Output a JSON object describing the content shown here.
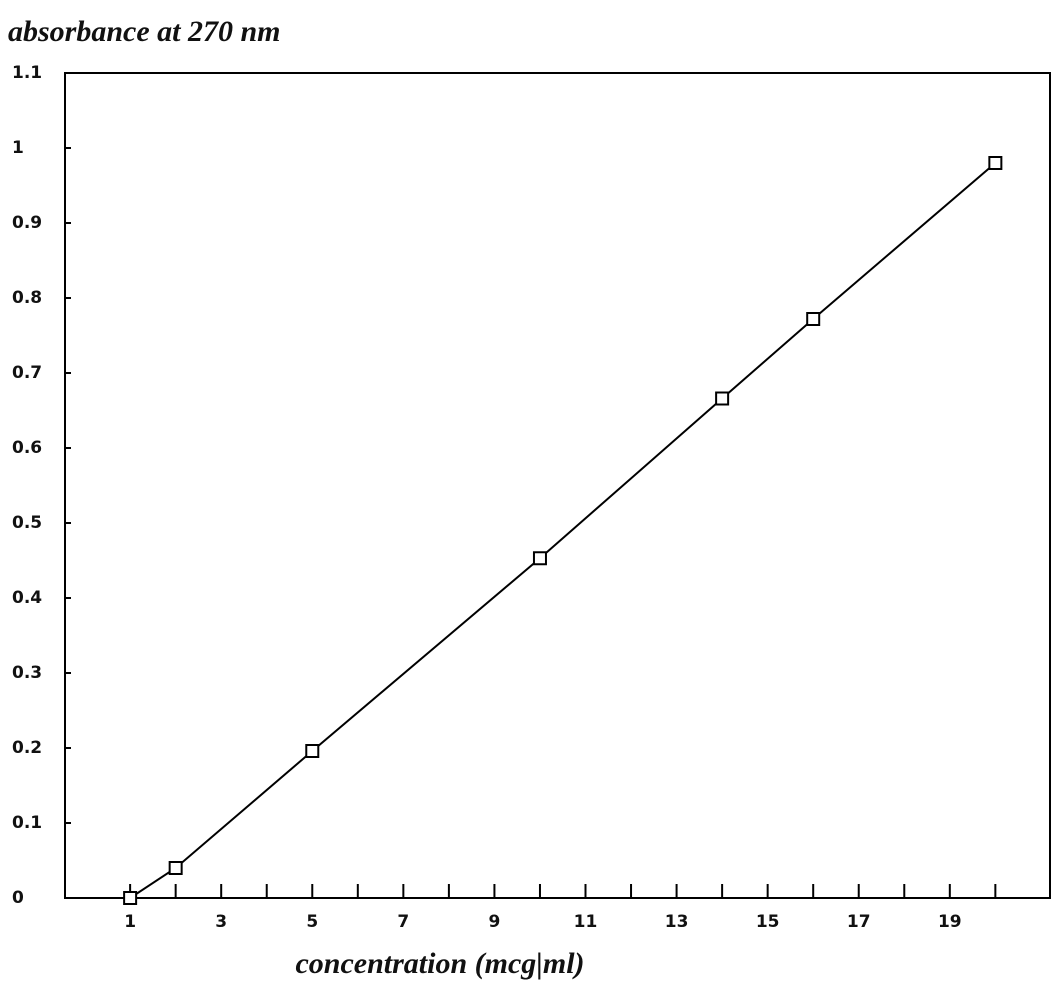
{
  "chart_data": {
    "type": "line",
    "title": "absorbance at 270 nm",
    "x_label": "concentration (mcg|ml)",
    "x": [
      1,
      2,
      5,
      10,
      14,
      16,
      20
    ],
    "series": [
      {
        "color": "#000000",
        "marker": "square",
        "values": [
          0,
          0.04,
          0.196,
          0.453,
          0.666,
          0.772,
          0.98
        ]
      }
    ],
    "xlim": [
      -0.43,
      21.2
    ],
    "xticks": [
      1,
      3,
      5,
      7,
      9,
      11,
      13,
      15,
      17,
      19
    ],
    "xminorticks": [
      2,
      4,
      6,
      8,
      10,
      12,
      14,
      16,
      18,
      20
    ],
    "ylim": [
      0,
      1.1
    ],
    "yticks": [
      0,
      0.1,
      0.2,
      0.3,
      0.4,
      0.5,
      0.6,
      0.7,
      0.8,
      0.9,
      1,
      1.1
    ],
    "grid": false
  }
}
